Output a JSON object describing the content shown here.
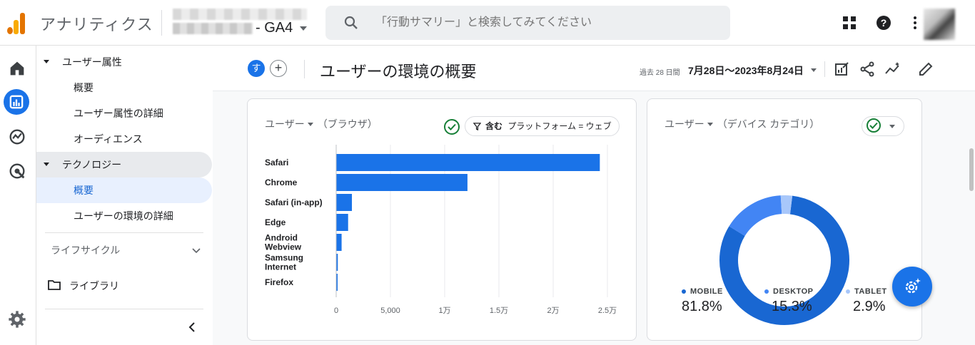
{
  "app": {
    "title": "アナリティクス",
    "property": "- GA4",
    "brand_colors": {
      "orange": "#f9ab00",
      "dark_orange": "#e37400",
      "blue": "#1a73e8"
    }
  },
  "search": {
    "placeholder": "「行動サマリー」と検索してみてください"
  },
  "top_icons": [
    "apps-grid-icon",
    "help-icon",
    "more-vert-icon"
  ],
  "rail": [
    "home-icon",
    "reports-icon",
    "explore-icon",
    "advertising-icon",
    "settings-icon"
  ],
  "nav": {
    "sections": [
      {
        "label": "ユーザー属性",
        "items": [
          "概要",
          "ユーザー属性の詳細",
          "オーディエンス"
        ]
      },
      {
        "label": "テクノロジー",
        "items": [
          "概要",
          "ユーザーの環境の詳細"
        ]
      }
    ],
    "lifecycle": "ライフサイクル",
    "library": "ライブラリ"
  },
  "header": {
    "chip": "す",
    "add": "+",
    "title": "ユーザーの環境の概要",
    "period": "過去 28 日間",
    "date_range": "7月28日～2023年8月24日"
  },
  "browser_card": {
    "metric": "ユーザー",
    "dimension": "（ブラウザ）",
    "filter_prefix": "含む",
    "filter": "プラットフォーム = ウェブ"
  },
  "device_card": {
    "metric": "ユーザー",
    "dimension": "（デバイス カテゴリ）"
  },
  "chart_data": [
    {
      "type": "bar",
      "orientation": "horizontal",
      "categories": [
        "Safari",
        "Chrome",
        "Safari (in-app)",
        "Edge",
        "Android Webview",
        "Samsung Internet",
        "Firefox"
      ],
      "values": [
        24300,
        12100,
        1450,
        1100,
        500,
        150,
        100
      ],
      "xlim": [
        0,
        25000
      ],
      "xticks": [
        0,
        5000,
        10000,
        15000,
        20000,
        25000
      ],
      "xtick_labels": [
        "0",
        "5,000",
        "1万",
        "1.5万",
        "2万",
        "2.5万"
      ],
      "color": "#1a73e8",
      "grid": true
    },
    {
      "type": "pie",
      "donut": true,
      "categories": [
        "MOBILE",
        "DESKTOP",
        "TABLET"
      ],
      "values": [
        81.8,
        15.3,
        2.9
      ],
      "labels": [
        "81.8%",
        "15.3%",
        "2.9%"
      ],
      "colors": [
        "#1967d2",
        "#4285f4",
        "#a8c7fa"
      ],
      "legend": "bottom"
    }
  ]
}
